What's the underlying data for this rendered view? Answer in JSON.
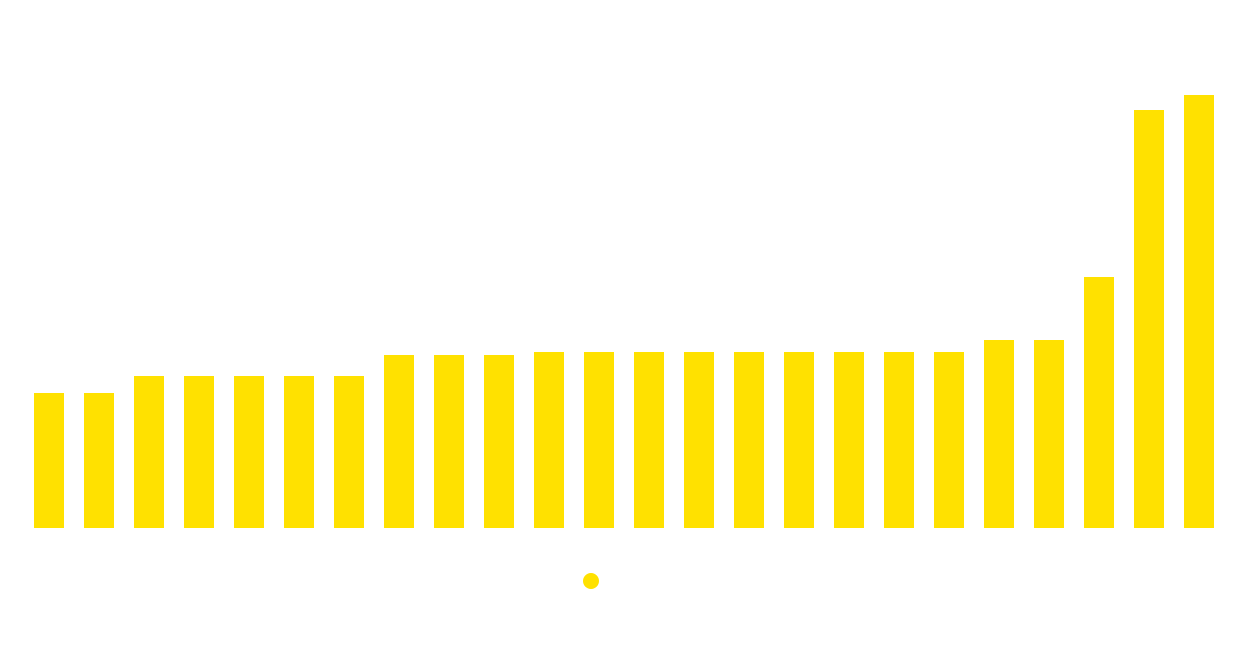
{
  "chart_data": {
    "type": "bar",
    "categories": [
      null,
      null,
      null,
      null,
      null,
      null,
      null,
      null,
      null,
      null,
      null,
      null,
      null,
      null,
      null,
      null,
      null,
      null,
      null,
      null,
      null,
      null,
      null,
      null
    ],
    "values": [
      135,
      135,
      152,
      152,
      152,
      152,
      152,
      173,
      173,
      173,
      176,
      176,
      176,
      176,
      176,
      176,
      176,
      176,
      176,
      188,
      188,
      251,
      418,
      433
    ],
    "color": "#ffe100",
    "ylim": [
      0,
      433
    ]
  }
}
